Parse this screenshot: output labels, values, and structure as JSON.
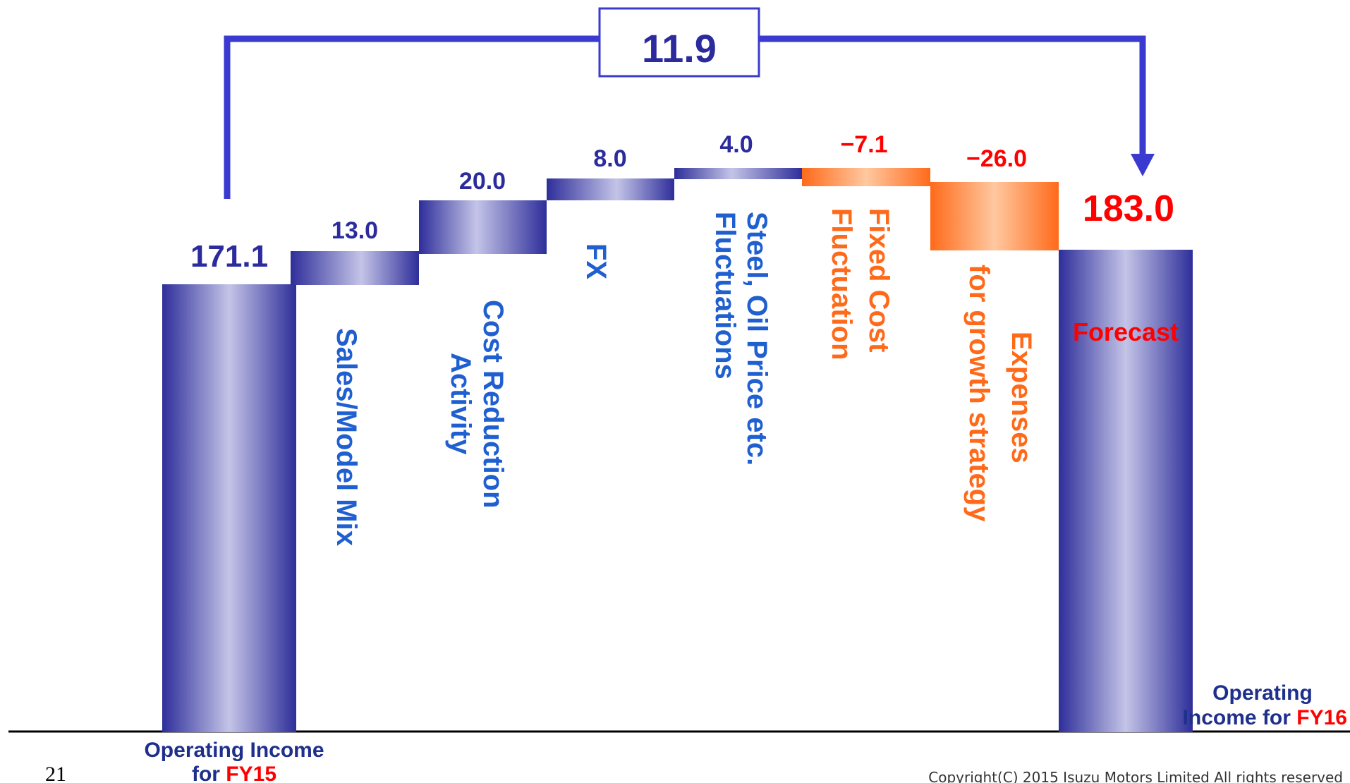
{
  "page_number": "21",
  "copyright": "Copyright(C) 2015 Isuzu Motors Limited All rights reserved",
  "colors": {
    "blue_dark": "#2E2E9A",
    "blue_light": "#C4C4E8",
    "orange_dark": "#FF6A1A",
    "orange_light": "#FFC8A0",
    "value_blue": "#2B2B9E",
    "category_blue": "#1F5FD0",
    "category_orange": "#FF6A1A",
    "forecast_red": "#FF0000",
    "axis": "#000000"
  },
  "chart_data": {
    "type": "waterfall",
    "difference": {
      "value": "11.9",
      "from": "Operating Income for FY15",
      "to": "Operating Income for FY16"
    },
    "ylim": [
      0,
      195
    ],
    "bars": [
      {
        "key": "start",
        "kind": "total",
        "value_label": "171.1",
        "start": 0,
        "end": 171.1,
        "bottom_label_line1": "Operating Income",
        "bottom_label_line2_prefix": "for ",
        "bottom_label_line2_highlight": "FY15"
      },
      {
        "key": "sales",
        "kind": "increase",
        "value_label": "13.0",
        "start": 171.1,
        "end": 184.1,
        "category": [
          "Sales/Model Mix"
        ]
      },
      {
        "key": "cost",
        "kind": "increase",
        "value_label": "20.0",
        "start": 184.1,
        "end": 204.1,
        "category": [
          "Cost Reduction",
          "Activity"
        ]
      },
      {
        "key": "fx",
        "kind": "increase",
        "value_label": "8.0",
        "start": 204.1,
        "end": 212.1,
        "category": [
          "FX"
        ]
      },
      {
        "key": "steel",
        "kind": "increase",
        "value_label": "4.0",
        "start": 212.1,
        "end": 216.1,
        "category": [
          "Steel, Oil Price etc.",
          "Fluctuations"
        ]
      },
      {
        "key": "fixed",
        "kind": "decrease",
        "value_label": "−7.1",
        "start": 216.1,
        "end": 209.0,
        "category": [
          "Fixed Cost",
          "Fluctuation"
        ]
      },
      {
        "key": "growth",
        "kind": "decrease",
        "value_label": "−26.0",
        "start": 209.0,
        "end": 183.0,
        "category": [
          "Expenses",
          "for growth strategy"
        ]
      },
      {
        "key": "end",
        "kind": "total",
        "value_label": "183.0",
        "start": 0,
        "end": 183.0,
        "inner_label": "Forecast",
        "bottom_label_line1": "Operating",
        "bottom_label_line2_prefix": "Income for ",
        "bottom_label_line2_highlight": "FY16"
      }
    ]
  }
}
